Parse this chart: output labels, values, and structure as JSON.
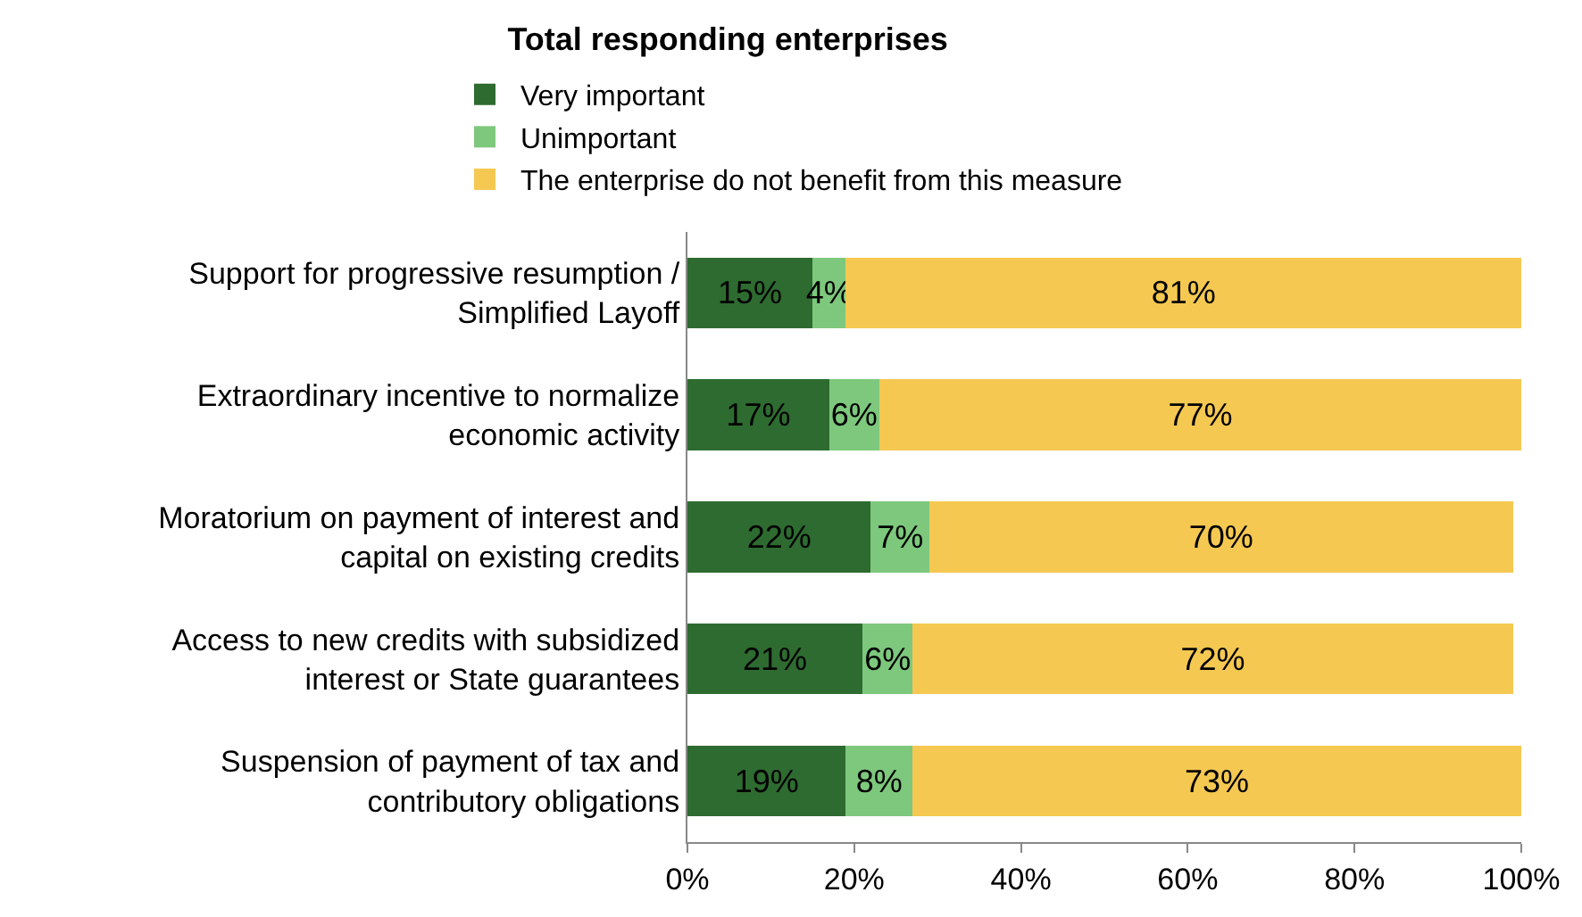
{
  "chart_data": {
    "type": "bar",
    "orientation": "horizontal",
    "stacked": true,
    "title": "Total responding enterprises",
    "categories": [
      "Support for progressive resumption /\nSimplified Layoff",
      "Extraordinary incentive to normalize\neconomic activity",
      "Moratorium on payment of interest and\ncapital on existing credits",
      "Access to new credits with subsidized\ninterest or State guarantees",
      "Suspension of payment of tax and\ncontributory obligations"
    ],
    "series": [
      {
        "name": "Very important",
        "color": "#2e6b30",
        "values": [
          15,
          17,
          22,
          21,
          19
        ],
        "value_labels": [
          "15%",
          "17%",
          "22%",
          "21%",
          "19%"
        ]
      },
      {
        "name": "Unimportant",
        "color": "#7dc87d",
        "values": [
          4,
          6,
          7,
          6,
          8
        ],
        "value_labels": [
          "4%",
          "6%",
          "7%",
          "6%",
          "8%"
        ]
      },
      {
        "name": "The enterprise do not benefit from this measure",
        "color": "#f5c851",
        "values": [
          81,
          77,
          70,
          72,
          73
        ],
        "value_labels": [
          "81%",
          "77%",
          "70%",
          "72%",
          "73%"
        ]
      }
    ],
    "xlim": [
      0,
      100
    ],
    "xticks": [
      {
        "value": 0,
        "label": "0%"
      },
      {
        "value": 20,
        "label": "20%"
      },
      {
        "value": 40,
        "label": "40%"
      },
      {
        "value": 60,
        "label": "60%"
      },
      {
        "value": 80,
        "label": "80%"
      },
      {
        "value": 100,
        "label": "100%"
      }
    ],
    "legend": "top",
    "grid": false
  }
}
